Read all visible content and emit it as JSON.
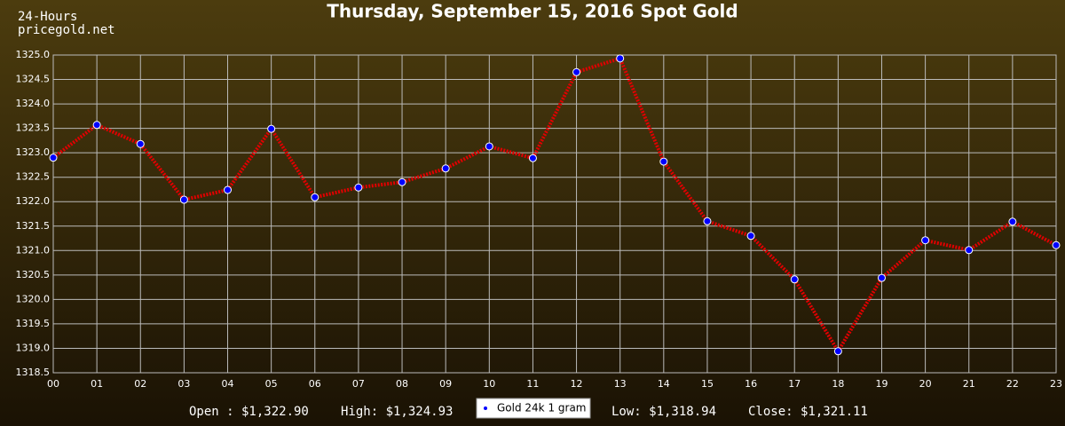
{
  "chart_data": {
    "type": "line",
    "title": "Thursday, September 15, 2016 Spot Gold",
    "corner_lines": [
      "24-Hours",
      "pricegold.net"
    ],
    "categories": [
      "00",
      "01",
      "02",
      "03",
      "04",
      "05",
      "06",
      "07",
      "08",
      "09",
      "10",
      "11",
      "12",
      "13",
      "14",
      "15",
      "16",
      "17",
      "18",
      "19",
      "20",
      "21",
      "22",
      "23"
    ],
    "series": [
      {
        "name": "Gold 24k 1 gram",
        "color": "#e00000",
        "marker_color": "#0000ff",
        "values": [
          1322.9,
          1323.57,
          1323.18,
          1322.04,
          1322.24,
          1323.49,
          1322.09,
          1322.29,
          1322.4,
          1322.68,
          1323.13,
          1322.89,
          1324.65,
          1324.93,
          1322.82,
          1321.6,
          1321.3,
          1320.41,
          1318.94,
          1320.44,
          1321.21,
          1321.01,
          1321.59,
          1321.11
        ]
      }
    ],
    "ylim": [
      1318.5,
      1325.0
    ],
    "yticks": [
      {
        "value": 1318.5,
        "label": "1318.5"
      },
      {
        "value": 1319,
        "label": "1319.0"
      },
      {
        "value": 1319.5,
        "label": "1319.5"
      },
      {
        "value": 1320,
        "label": "1320.0"
      },
      {
        "value": 1320.5,
        "label": "1320.5"
      },
      {
        "value": 1321,
        "label": "1321.0"
      },
      {
        "value": 1321.5,
        "label": "1321.5"
      },
      {
        "value": 1322,
        "label": "1322.0"
      },
      {
        "value": 1322.5,
        "label": "1322.5"
      },
      {
        "value": 1323,
        "label": "1323.0"
      },
      {
        "value": 1323.5,
        "label": "1323.5"
      },
      {
        "value": 1324,
        "label": "1324.0"
      },
      {
        "value": 1324.5,
        "label": "1324.5"
      },
      {
        "value": 1325,
        "label": "1325.0"
      }
    ],
    "grid": true,
    "stats_left": [
      "Open : $1,322.90",
      "High: $1,324.93"
    ],
    "stats_right": [
      "Low: $1,318.94",
      "Close: $1,321.11"
    ]
  }
}
